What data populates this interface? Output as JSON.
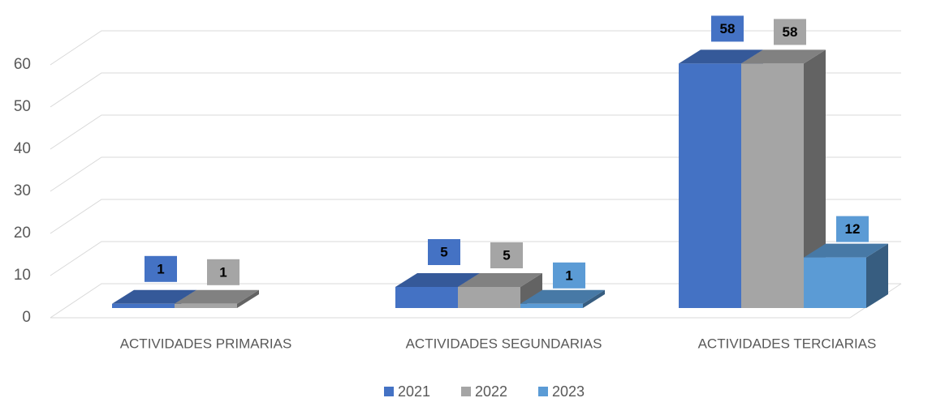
{
  "chart_data": {
    "type": "bar3d",
    "categories": [
      "ACTIVIDADES PRIMARIAS",
      "ACTIVIDADES SEGUNDARIAS",
      "ACTIVIDADES TERCIARIAS"
    ],
    "series": [
      {
        "name": "2021",
        "color": "#4472c4",
        "values": [
          1,
          5,
          58
        ]
      },
      {
        "name": "2022",
        "color": "#a5a5a5",
        "values": [
          1,
          5,
          58
        ]
      },
      {
        "name": "2023",
        "color": "#5b9bd5",
        "values": [
          null,
          1,
          12
        ]
      }
    ],
    "ylim": [
      0,
      60
    ],
    "yticks": [
      0,
      10,
      20,
      30,
      40,
      50,
      60
    ],
    "grid": true,
    "legend": "bottom"
  }
}
